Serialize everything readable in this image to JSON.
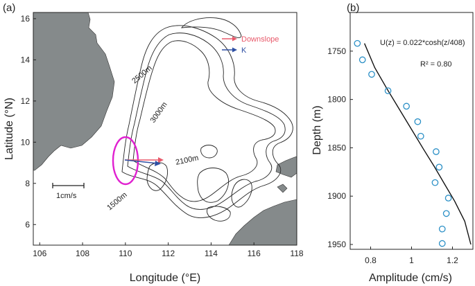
{
  "panels": {
    "a_label": "(a)",
    "b_label": "(b)"
  },
  "map": {
    "xlabel": "Longitude (°E)",
    "ylabel": "Latitude (°N)",
    "xticks": [
      106,
      108,
      110,
      112,
      114,
      116,
      118
    ],
    "yticks": [
      6,
      8,
      10,
      12,
      14,
      16
    ],
    "xlim": [
      105.7,
      118.0
    ],
    "ylim": [
      5.0,
      16.3
    ],
    "contour_labels": [
      {
        "text": "2500m",
        "lon": 111.0,
        "lat": 13.4,
        "angle": -40
      },
      {
        "text": "3000m",
        "lon": 112.2,
        "lat": 12.4,
        "angle": -55
      },
      {
        "text": "2100m",
        "lon": 112.6,
        "lat": 9.3,
        "angle": -12
      },
      {
        "text": "1500m",
        "lon": 111.0,
        "lat": 7.0,
        "angle": -40
      }
    ],
    "legend": [
      {
        "label": "Downslope",
        "color": "#e8596a"
      },
      {
        "label": "K",
        "color": "#2e4fa3"
      }
    ],
    "scale_label": "1cm/s",
    "marker_lon": 109.9,
    "marker_lat": 9.3,
    "colors": {
      "land": "#858a8b",
      "ellipse": "#e020d0",
      "contour": "#222222"
    }
  },
  "chart_data": [
    {
      "type": "scatter",
      "panel": "(b)",
      "xlabel": "Amplitude (cm/s)",
      "ylabel": "Depth (m)",
      "xlim": [
        0.7,
        1.3
      ],
      "ylim": [
        1955,
        1710
      ],
      "y_inverted": true,
      "xticks": [
        0.8,
        1.0,
        1.2
      ],
      "yticks": [
        1750,
        1800,
        1850,
        1900,
        1950
      ],
      "annotation_formula": "U(z) = 0.022*cosh(z/408)",
      "annotation_r2": "R² = 0.80",
      "observed": {
        "amplitude": [
          0.735,
          0.76,
          0.805,
          0.885,
          0.975,
          1.03,
          1.045,
          1.12,
          1.135,
          1.115,
          1.18,
          1.17,
          1.15,
          1.15
        ],
        "depth": [
          1742,
          1759,
          1774,
          1791,
          1807,
          1823,
          1838,
          1854,
          1870,
          1886,
          1902,
          1918,
          1934,
          1949
        ]
      },
      "fit": {
        "amplitude": [
          0.77,
          0.82,
          0.88,
          0.94,
          1.0,
          1.06,
          1.11,
          1.16,
          1.21,
          1.26,
          1.29
        ],
        "depth": [
          1742,
          1767,
          1789,
          1810,
          1831,
          1852,
          1869,
          1887,
          1905,
          1926,
          1950
        ]
      }
    }
  ]
}
